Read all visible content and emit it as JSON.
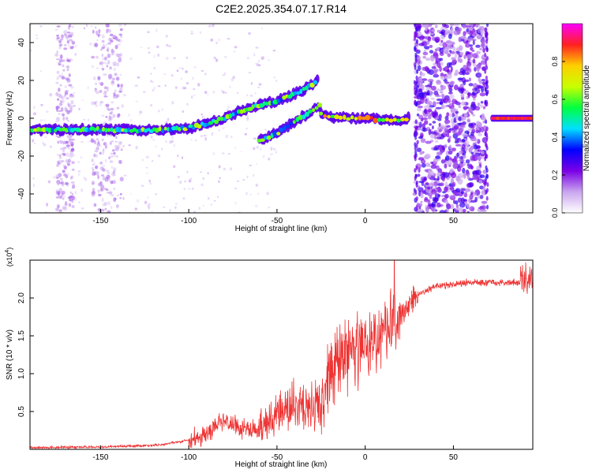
{
  "title": "C2E2.2025.354.07.17.R14",
  "chart_data": [
    {
      "type": "heatmap",
      "xlabel": "Height of straight line (km)",
      "ylabel": "Frequency (Hz)",
      "xlim": [
        -190,
        95
      ],
      "ylim": [
        -50,
        50
      ],
      "x_ticks": [
        -150,
        -100,
        -50,
        0,
        50
      ],
      "y_ticks": [
        -40,
        -20,
        0,
        20,
        40
      ],
      "colorbar": {
        "label": "Normalized spectral amplitude",
        "range": [
          0,
          1
        ],
        "ticks": [
          "0.0",
          "0.2",
          "0.4",
          "0.6",
          "0.8"
        ],
        "colors": [
          "#ffffff",
          "#c9a5ee",
          "#7a00e6",
          "#0000ff",
          "#00e0ff",
          "#00ff40",
          "#c8ff00",
          "#ffd000",
          "#ff2020",
          "#ff00ff"
        ]
      },
      "main_track": {
        "x": [
          -190,
          -170,
          -150,
          -130,
          -110,
          -100,
          -90,
          -80,
          -70,
          -60,
          -50,
          -45,
          -40,
          -35,
          -30,
          -27,
          -25,
          -20,
          -10,
          0,
          10,
          20,
          25
        ],
        "y": [
          -6,
          -6,
          -6,
          -6.5,
          -6,
          -5,
          -3,
          0,
          4,
          7,
          9,
          11,
          13,
          15,
          18,
          20,
          2,
          1,
          0,
          0,
          -1,
          -1,
          0
        ]
      },
      "lower_branch": {
        "x": [
          -60,
          -55,
          -50,
          -45,
          -40,
          -35,
          -30,
          -25
        ],
        "y": [
          -12,
          -10,
          -8,
          -5,
          -2,
          1,
          4,
          7
        ]
      },
      "noise_band": {
        "x": [
          28,
          68
        ],
        "y": [
          -50,
          50
        ]
      },
      "tail_track": {
        "x": [
          72,
          95
        ],
        "y": 0
      },
      "sparse_columns": [
        [
          -175,
          -165
        ],
        [
          -155,
          -138
        ]
      ]
    },
    {
      "type": "line",
      "xlabel": "Height of straight line (km)",
      "ylabel": "SNR (10 * v/v)",
      "y_multiplier": "(x10^4)",
      "xlim": [
        -190,
        95
      ],
      "ylim": [
        0,
        2.5
      ],
      "x_ticks": [
        -150,
        -100,
        -50,
        0,
        50
      ],
      "y_ticks": [
        "0.5",
        "1.0",
        "1.5",
        "2.0"
      ],
      "color": "#ee3333",
      "trend": {
        "x": [
          -190,
          -150,
          -120,
          -110,
          -100,
          -95,
          -90,
          -85,
          -80,
          -75,
          -70,
          -65,
          -60,
          -55,
          -50,
          -45,
          -40,
          -35,
          -30,
          -25,
          -20,
          -15,
          -10,
          -5,
          0,
          5,
          10,
          15,
          20,
          25,
          30,
          40,
          50,
          60,
          70,
          80,
          90,
          95
        ],
        "y": [
          0.02,
          0.03,
          0.05,
          0.08,
          0.12,
          0.15,
          0.2,
          0.3,
          0.35,
          0.3,
          0.25,
          0.22,
          0.25,
          0.35,
          0.45,
          0.5,
          0.55,
          0.55,
          0.5,
          0.55,
          0.9,
          1.1,
          1.2,
          1.25,
          1.3,
          1.4,
          1.45,
          1.6,
          1.75,
          1.9,
          2.05,
          2.15,
          2.18,
          2.2,
          2.2,
          2.2,
          2.2,
          2.25
        ]
      }
    }
  ]
}
